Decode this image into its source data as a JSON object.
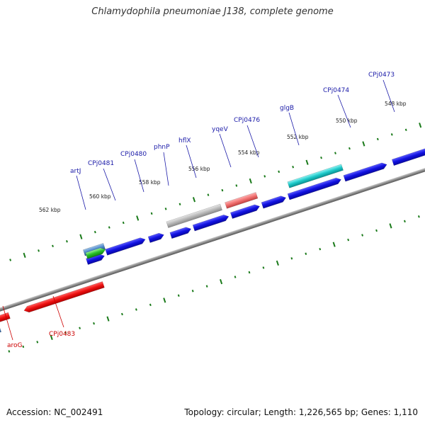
{
  "title": "Chlamydophila pneumoniae J138, complete genome",
  "footer": {
    "accession": "Accession: NC_002491",
    "topology": "Topology: circular; Length: 1,226,565 bp; Genes: 1,110"
  },
  "scale_labels": [
    "562 kbp",
    "560 kbp",
    "558 kbp",
    "556 kbp",
    "554 kbp",
    "552 kbp",
    "550 kbp",
    "548 kbp"
  ],
  "gene_labels_forward": [
    "artJ",
    "CPj0481",
    "CPj0480",
    "phnP",
    "hflX",
    "yqeV",
    "CPj0476",
    "glgB",
    "CPj0474",
    "CPj0473"
  ],
  "gene_labels_reverse": [
    "aroG",
    "CPj0483"
  ],
  "colors": {
    "forward_label": "#1a1aa8",
    "reverse_label": "#cc0000",
    "cds_blue": "#1010e0",
    "cds_red": "#e81010",
    "backbone": "#888888",
    "tick_green": "#1a7a1a"
  }
}
